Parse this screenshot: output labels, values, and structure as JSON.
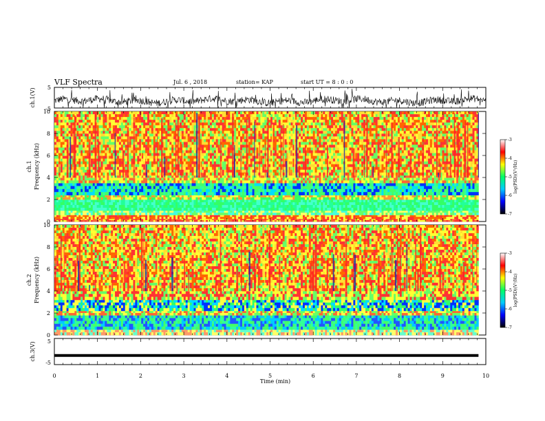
{
  "header": {
    "title": "VLF Spectra",
    "date": "Jul. 6 , 2018",
    "station": "station= KAP",
    "start_ut": "start UT = 8 : 0 : 0"
  },
  "chart_data": [
    {
      "type": "line",
      "panel": "ch1-waveform",
      "ylabel": "ch.1(V)",
      "ylim": [
        -5,
        5
      ],
      "yticks": [
        "5",
        "-5"
      ],
      "xlim": [
        0,
        10
      ],
      "baseline": -1.5,
      "amplitude": 1.8,
      "color": "#000000"
    },
    {
      "type": "heatmap",
      "panel": "ch1-spectrogram",
      "ylabel_top": "ch.1",
      "ylabel": "Frequency (kHz)",
      "ylim": [
        0,
        10
      ],
      "yticks": [
        "0",
        "2",
        "4",
        "6",
        "8",
        "10"
      ],
      "xlim": [
        0,
        9.83
      ],
      "bands": [
        {
          "from": 0.0,
          "to": 0.25,
          "colors": [
            "#ffff33",
            "#ff6633",
            "#ff3333"
          ]
        },
        {
          "from": 0.25,
          "to": 0.6,
          "colors": [
            "#ff3333",
            "#ffff44",
            "#ff6600"
          ]
        },
        {
          "from": 0.6,
          "to": 1.0,
          "colors": [
            "#66ff66",
            "#44ffdd",
            "#ffff66"
          ]
        },
        {
          "from": 1.0,
          "to": 2.0,
          "colors": [
            "#33ff66",
            "#44ffcc",
            "#22ff99"
          ]
        },
        {
          "from": 2.0,
          "to": 2.4,
          "colors": [
            "#ffff44",
            "#ff9933",
            "#33ff66"
          ]
        },
        {
          "from": 2.4,
          "to": 3.5,
          "colors": [
            "#33ff99",
            "#00ddff",
            "#0033ff",
            "#44ff66"
          ]
        },
        {
          "from": 3.5,
          "to": 4.2,
          "colors": [
            "#ffff33",
            "#66ff66",
            "#ff6633"
          ]
        },
        {
          "from": 4.2,
          "to": 10.0,
          "colors": [
            "#ffff33",
            "#ff3333",
            "#ff6600",
            "#ffdd33",
            "#66ff66"
          ]
        }
      ]
    },
    {
      "type": "heatmap",
      "panel": "ch2-spectrogram",
      "ylabel_top": "ch.2",
      "ylabel": "Frequency (kHz)",
      "ylim": [
        0,
        10
      ],
      "yticks": [
        "0",
        "2",
        "4",
        "6",
        "8",
        "10"
      ],
      "xlim": [
        0,
        9.83
      ],
      "bands": [
        {
          "from": 0.0,
          "to": 0.5,
          "colors": [
            "#ffff66",
            "#ff9966",
            "#66ffcc"
          ]
        },
        {
          "from": 0.5,
          "to": 1.8,
          "colors": [
            "#33ff99",
            "#00ccff",
            "#2255ff",
            "#44ff66"
          ]
        },
        {
          "from": 1.8,
          "to": 2.2,
          "colors": [
            "#ffff44",
            "#66ff66",
            "#ff6633"
          ]
        },
        {
          "from": 2.2,
          "to": 3.2,
          "colors": [
            "#0033ff",
            "#00ddff",
            "#33ff66",
            "#ffff44"
          ]
        },
        {
          "from": 3.2,
          "to": 4.0,
          "colors": [
            "#ffff33",
            "#66ff66",
            "#ff3333"
          ]
        },
        {
          "from": 4.0,
          "to": 10.0,
          "colors": [
            "#ffff33",
            "#ff3333",
            "#ff6600",
            "#ffdd33",
            "#66ff66"
          ]
        }
      ]
    },
    {
      "type": "line",
      "panel": "ch3-waveform",
      "ylabel": "ch.3(V)",
      "ylim": [
        -5,
        5
      ],
      "yticks": [
        "5",
        "-5"
      ],
      "xlim": [
        0,
        9.83
      ],
      "constant_value": -1.5,
      "color": "#000000"
    }
  ],
  "colorbar": {
    "label": "log(PSD)(V²/Hz)",
    "range": [
      -7,
      -3
    ],
    "ticks": [
      "-3",
      "-4",
      "-5",
      "-6",
      "-7"
    ],
    "stops": [
      "#000000",
      "#0000ff",
      "#00ccff",
      "#00ff66",
      "#ffff00",
      "#ff0000",
      "#ffffff"
    ]
  },
  "xaxis": {
    "label": "Time (min)",
    "range": [
      0,
      10
    ],
    "ticks": [
      "0",
      "1",
      "2",
      "3",
      "4",
      "5",
      "6",
      "7",
      "8",
      "9",
      "10"
    ]
  }
}
